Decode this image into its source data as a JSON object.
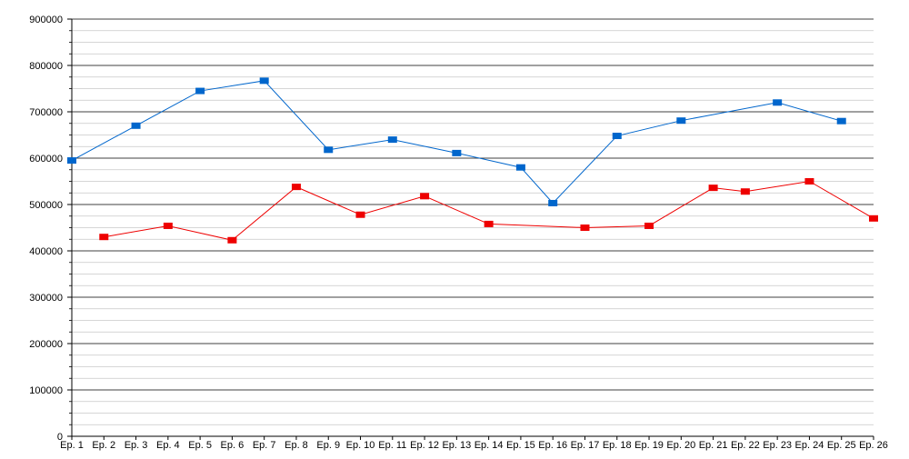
{
  "chart_data": {
    "type": "line",
    "title": "",
    "xlabel": "",
    "ylabel": "",
    "categories": [
      "Ep. 1",
      "Ep. 2",
      "Ep. 3",
      "Ep. 4",
      "Ep. 5",
      "Ep. 6",
      "Ep. 7",
      "Ep. 8",
      "Ep. 9",
      "Ep. 10",
      "Ep. 11",
      "Ep. 12",
      "Ep. 13",
      "Ep. 14",
      "Ep. 15",
      "Ep. 16",
      "Ep. 17",
      "Ep. 18",
      "Ep. 19",
      "Ep. 20",
      "Ep. 21",
      "Ep. 22",
      "Ep. 23",
      "Ep. 24",
      "Ep. 25",
      "Ep. 26"
    ],
    "ylim": [
      0,
      900000
    ],
    "yticks": [
      0,
      100000,
      200000,
      300000,
      400000,
      500000,
      600000,
      700000,
      800000,
      900000
    ],
    "ytick_labels": [
      "0",
      "100000",
      "200000",
      "300000",
      "400000",
      "500000",
      "600000",
      "700000",
      "800000",
      "900000"
    ],
    "grid": true,
    "minor_grid": true,
    "legend": "none",
    "series": [
      {
        "color": "#0066cc",
        "values": [
          595000,
          null,
          670000,
          null,
          745000,
          null,
          767000,
          null,
          618000,
          null,
          640000,
          null,
          611000,
          null,
          580000,
          503000,
          null,
          648000,
          null,
          681000,
          null,
          null,
          720000,
          null,
          680000,
          null
        ]
      },
      {
        "color": "#ee0000",
        "values": [
          null,
          430000,
          null,
          454000,
          null,
          423000,
          null,
          538000,
          null,
          478000,
          null,
          518000,
          null,
          458000,
          null,
          null,
          450000,
          null,
          454000,
          null,
          536000,
          528000,
          null,
          550000,
          null,
          470000
        ]
      }
    ]
  }
}
